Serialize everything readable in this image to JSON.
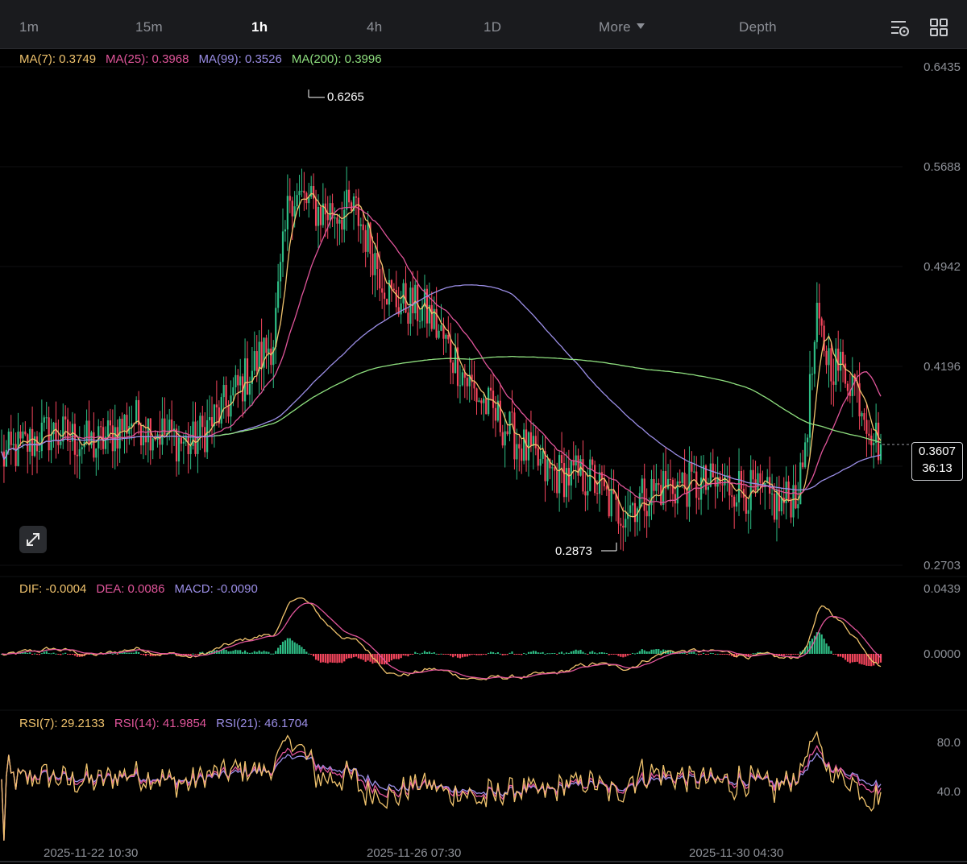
{
  "toolbar": {
    "timeframes": [
      "1m",
      "15m",
      "1h",
      "4h",
      "1D"
    ],
    "active": "1h",
    "more_label": "More",
    "depth_label": "Depth",
    "icons": [
      "chart-settings-icon",
      "layout-grid-icon"
    ]
  },
  "legends": {
    "ma": [
      {
        "label": "MA(7): 0.3749",
        "color": "#f0c36d"
      },
      {
        "label": "MA(25): 0.3968",
        "color": "#e0559a"
      },
      {
        "label": "MA(99): 0.3526",
        "color": "#9b8ee6"
      },
      {
        "label": "MA(200): 0.3996",
        "color": "#8fe07f"
      }
    ],
    "macd": [
      {
        "label": "DIF: -0.0004",
        "color": "#f0c36d"
      },
      {
        "label": "DEA: 0.0086",
        "color": "#e0559a"
      },
      {
        "label": "MACD: -0.0090",
        "color": "#9b8ee6"
      }
    ],
    "rsi": [
      {
        "label": "RSI(7): 29.2133",
        "color": "#f0c36d"
      },
      {
        "label": "RSI(14): 41.9854",
        "color": "#e0559a"
      },
      {
        "label": "RSI(21): 46.1704",
        "color": "#9b8ee6"
      }
    ]
  },
  "axes": {
    "price_ticks": [
      "0.6435",
      "0.5688",
      "0.4942",
      "0.4196",
      "0.2703"
    ],
    "macd_ticks": [
      "0.0439",
      "0.0000"
    ],
    "rsi_ticks": [
      "80.0",
      "40.0"
    ],
    "dates": [
      "2025-11-22 10:30",
      "2025-11-26 07:30",
      "2025-11-30 04:30"
    ]
  },
  "price_tag": {
    "price": "0.3607",
    "countdown": "36:13"
  },
  "callouts": {
    "high": "0.6265",
    "low": "0.2873"
  },
  "colors": {
    "up": "#2ebd85",
    "down": "#f6465d",
    "bg": "#000000"
  },
  "chart_data": {
    "type": "candlestick",
    "interval": "1h",
    "price_range": [
      0.2703,
      0.6435
    ],
    "high": 0.6265,
    "low": 0.2873,
    "last_price": 0.3607,
    "anchors": [
      {
        "t": 0,
        "price": 0.35
      },
      {
        "t": 20,
        "price": 0.37
      },
      {
        "t": 40,
        "price": 0.36
      },
      {
        "t": 55,
        "price": 0.38
      },
      {
        "t": 80,
        "price": 0.36
      },
      {
        "t": 95,
        "price": 0.39
      },
      {
        "t": 115,
        "price": 0.44
      },
      {
        "t": 122,
        "price": 0.55
      },
      {
        "t": 135,
        "price": 0.535
      },
      {
        "t": 150,
        "price": 0.535
      },
      {
        "t": 165,
        "price": 0.47
      },
      {
        "t": 180,
        "price": 0.46
      },
      {
        "t": 200,
        "price": 0.4
      },
      {
        "t": 215,
        "price": 0.37
      },
      {
        "t": 230,
        "price": 0.34
      },
      {
        "t": 250,
        "price": 0.335
      },
      {
        "t": 260,
        "price": 0.31
      },
      {
        "t": 280,
        "price": 0.33
      },
      {
        "t": 310,
        "price": 0.33
      },
      {
        "t": 330,
        "price": 0.315
      },
      {
        "t": 338,
        "price": 0.33
      },
      {
        "t": 345,
        "price": 0.45
      },
      {
        "t": 350,
        "price": 0.425
      },
      {
        "t": 360,
        "price": 0.41
      },
      {
        "t": 370,
        "price": 0.365
      },
      {
        "t": 372,
        "price": 0.3607
      }
    ]
  }
}
